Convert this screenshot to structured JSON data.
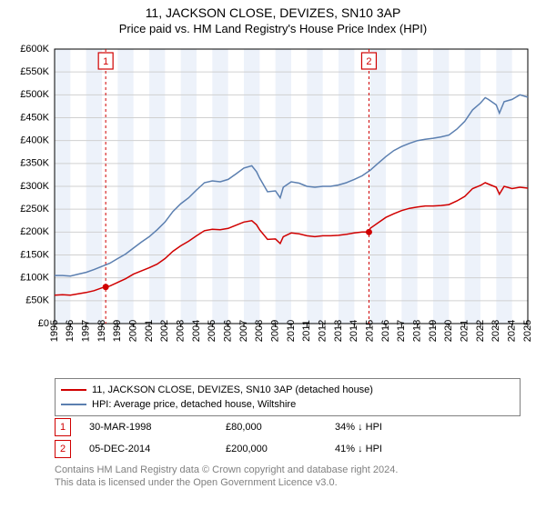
{
  "title1": "11, JACKSON CLOSE, DEVIZES, SN10 3AP",
  "title2": "Price paid vs. HM Land Registry's House Price Index (HPI)",
  "chart": {
    "type": "line",
    "background_color": "#ffffff",
    "plot_bg_band_color": "#edf2fa",
    "axis_color": "#000000",
    "grid_color": "#d0d0d0",
    "x": {
      "min": 1995,
      "max": 2025,
      "tick_step": 1
    },
    "y": {
      "min": 0,
      "max": 600000,
      "tick_step": 50000,
      "tick_prefix": "£",
      "tick_suffix": "K"
    },
    "y_ticks": [
      "£0",
      "£50K",
      "£100K",
      "£150K",
      "£200K",
      "£250K",
      "£300K",
      "£350K",
      "£400K",
      "£450K",
      "£500K",
      "£550K",
      "£600K"
    ],
    "series": [
      {
        "name": "11, JACKSON CLOSE, DEVIZES, SN10 3AP (detached house)",
        "color": "#d00000",
        "width": 1.5,
        "data": [
          [
            1995,
            62000
          ],
          [
            1995.5,
            63000
          ],
          [
            1996,
            62000
          ],
          [
            1996.5,
            65000
          ],
          [
            1997,
            68000
          ],
          [
            1997.5,
            72000
          ],
          [
            1998,
            78000
          ],
          [
            1998.24,
            80000
          ],
          [
            1998.5,
            82000
          ],
          [
            1999,
            90000
          ],
          [
            1999.5,
            98000
          ],
          [
            2000,
            108000
          ],
          [
            2000.5,
            115000
          ],
          [
            2001,
            122000
          ],
          [
            2001.5,
            130000
          ],
          [
            2002,
            142000
          ],
          [
            2002.5,
            158000
          ],
          [
            2003,
            170000
          ],
          [
            2003.5,
            180000
          ],
          [
            2004,
            192000
          ],
          [
            2004.5,
            203000
          ],
          [
            2005,
            206000
          ],
          [
            2005.5,
            205000
          ],
          [
            2006,
            208000
          ],
          [
            2006.5,
            215000
          ],
          [
            2007,
            222000
          ],
          [
            2007.5,
            225000
          ],
          [
            2007.8,
            216000
          ],
          [
            2008,
            205000
          ],
          [
            2008.5,
            184000
          ],
          [
            2009,
            185000
          ],
          [
            2009.3,
            175000
          ],
          [
            2009.5,
            190000
          ],
          [
            2010,
            198000
          ],
          [
            2010.5,
            196000
          ],
          [
            2011,
            192000
          ],
          [
            2011.5,
            190000
          ],
          [
            2012,
            192000
          ],
          [
            2012.5,
            192000
          ],
          [
            2013,
            193000
          ],
          [
            2013.5,
            195000
          ],
          [
            2014,
            198000
          ],
          [
            2014.5,
            200000
          ],
          [
            2014.93,
            200000
          ],
          [
            2015,
            208000
          ],
          [
            2015.5,
            220000
          ],
          [
            2016,
            232000
          ],
          [
            2016.5,
            240000
          ],
          [
            2017,
            247000
          ],
          [
            2017.5,
            252000
          ],
          [
            2018,
            255000
          ],
          [
            2018.5,
            257000
          ],
          [
            2019,
            257000
          ],
          [
            2019.5,
            258000
          ],
          [
            2020,
            260000
          ],
          [
            2020.5,
            268000
          ],
          [
            2021,
            278000
          ],
          [
            2021.5,
            295000
          ],
          [
            2022,
            302000
          ],
          [
            2022.3,
            308000
          ],
          [
            2022.5,
            305000
          ],
          [
            2023,
            298000
          ],
          [
            2023.2,
            283000
          ],
          [
            2023.5,
            300000
          ],
          [
            2024,
            295000
          ],
          [
            2024.5,
            298000
          ],
          [
            2025,
            296000
          ]
        ]
      },
      {
        "name": "HPI: Average price, detached house, Wiltshire",
        "color": "#5b7fb0",
        "width": 1.5,
        "data": [
          [
            1995,
            105000
          ],
          [
            1995.5,
            105000
          ],
          [
            1996,
            104000
          ],
          [
            1996.5,
            108000
          ],
          [
            1997,
            112000
          ],
          [
            1997.5,
            118000
          ],
          [
            1998,
            125000
          ],
          [
            1998.5,
            132000
          ],
          [
            1999,
            142000
          ],
          [
            1999.5,
            152000
          ],
          [
            2000,
            165000
          ],
          [
            2000.5,
            178000
          ],
          [
            2001,
            190000
          ],
          [
            2001.5,
            205000
          ],
          [
            2002,
            222000
          ],
          [
            2002.5,
            245000
          ],
          [
            2003,
            262000
          ],
          [
            2003.5,
            275000
          ],
          [
            2004,
            292000
          ],
          [
            2004.5,
            308000
          ],
          [
            2005,
            312000
          ],
          [
            2005.5,
            310000
          ],
          [
            2006,
            315000
          ],
          [
            2006.5,
            327000
          ],
          [
            2007,
            340000
          ],
          [
            2007.5,
            345000
          ],
          [
            2007.8,
            332000
          ],
          [
            2008,
            318000
          ],
          [
            2008.5,
            288000
          ],
          [
            2009,
            290000
          ],
          [
            2009.3,
            275000
          ],
          [
            2009.5,
            298000
          ],
          [
            2010,
            310000
          ],
          [
            2010.5,
            307000
          ],
          [
            2011,
            300000
          ],
          [
            2011.5,
            298000
          ],
          [
            2012,
            300000
          ],
          [
            2012.5,
            300000
          ],
          [
            2013,
            303000
          ],
          [
            2013.5,
            308000
          ],
          [
            2014,
            315000
          ],
          [
            2014.5,
            323000
          ],
          [
            2015,
            335000
          ],
          [
            2015.5,
            350000
          ],
          [
            2016,
            365000
          ],
          [
            2016.5,
            378000
          ],
          [
            2017,
            387000
          ],
          [
            2017.5,
            394000
          ],
          [
            2018,
            400000
          ],
          [
            2018.5,
            403000
          ],
          [
            2019,
            405000
          ],
          [
            2019.5,
            408000
          ],
          [
            2020,
            412000
          ],
          [
            2020.5,
            425000
          ],
          [
            2021,
            442000
          ],
          [
            2021.5,
            467000
          ],
          [
            2022,
            482000
          ],
          [
            2022.3,
            494000
          ],
          [
            2022.5,
            490000
          ],
          [
            2023,
            478000
          ],
          [
            2023.2,
            460000
          ],
          [
            2023.5,
            485000
          ],
          [
            2024,
            490000
          ],
          [
            2024.5,
            500000
          ],
          [
            2025,
            495000
          ]
        ]
      }
    ],
    "event_markers": [
      {
        "label": "1",
        "x": 1998.24,
        "y": 80000,
        "color": "#d00000"
      },
      {
        "label": "2",
        "x": 2014.93,
        "y": 200000,
        "color": "#d00000"
      }
    ]
  },
  "legend": {
    "items": [
      {
        "label": "11, JACKSON CLOSE, DEVIZES, SN10 3AP (detached house)",
        "color": "#d00000"
      },
      {
        "label": "HPI: Average price, detached house, Wiltshire",
        "color": "#5b7fb0"
      }
    ]
  },
  "sales_table": {
    "rows": [
      {
        "badge": "1",
        "date": "30-MAR-1998",
        "price": "£80,000",
        "vs_hpi": "34% ↓ HPI"
      },
      {
        "badge": "2",
        "date": "05-DEC-2014",
        "price": "£200,000",
        "vs_hpi": "41% ↓ HPI"
      }
    ]
  },
  "footer": {
    "line1": "Contains HM Land Registry data © Crown copyright and database right 2024.",
    "line2": "This data is licensed under the Open Government Licence v3.0."
  }
}
